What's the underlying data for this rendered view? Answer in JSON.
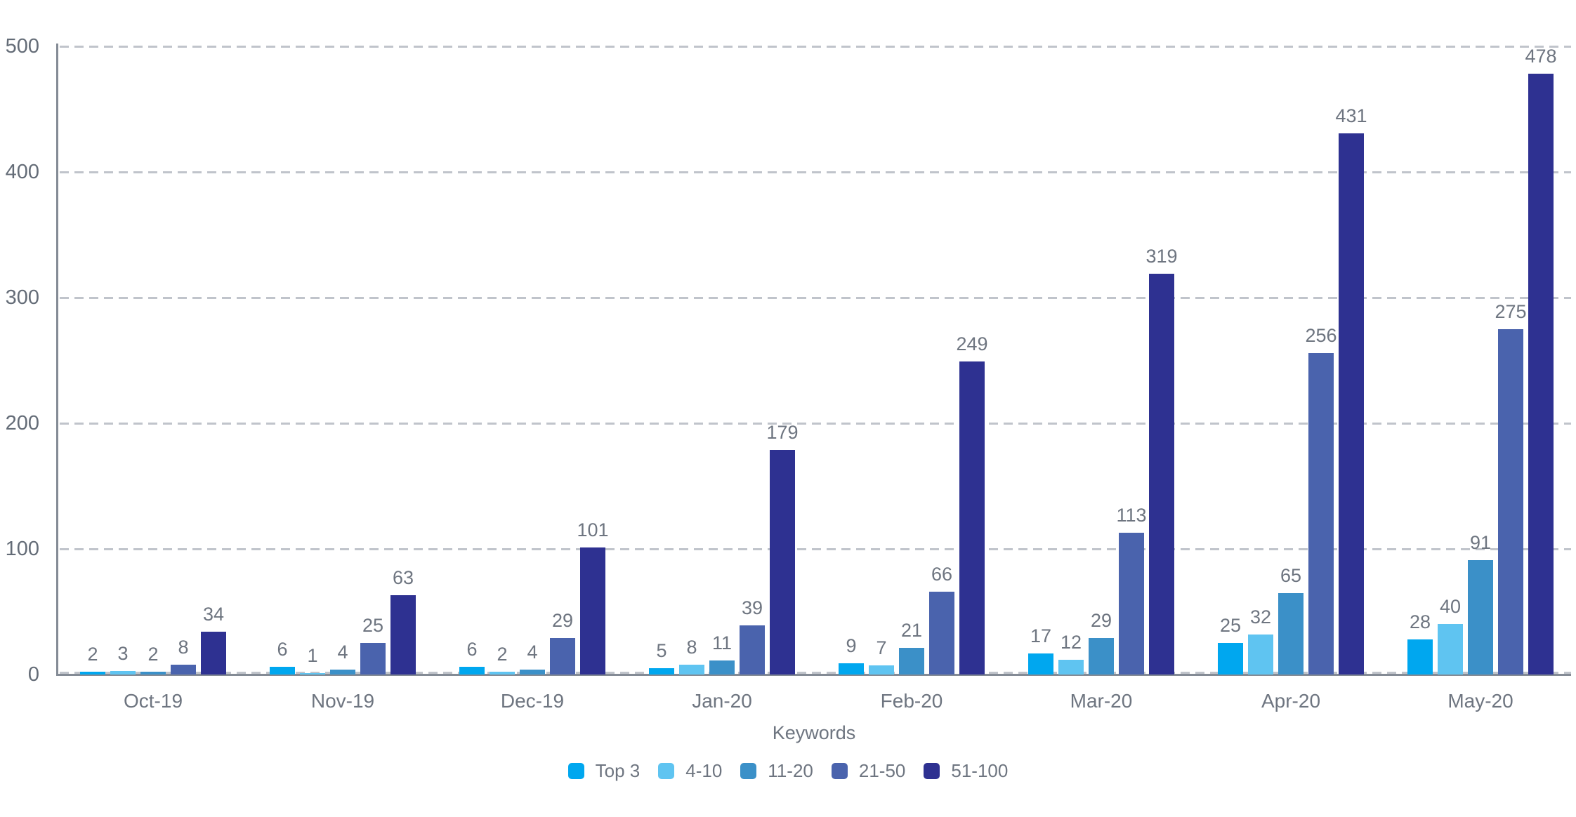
{
  "chart_data": {
    "type": "bar",
    "title": "",
    "xlabel": "Keywords",
    "ylabel": "",
    "ylim": [
      0,
      500
    ],
    "yticks": [
      0,
      100,
      200,
      300,
      400,
      500
    ],
    "grid": "horizontal-dashed",
    "legend_position": "bottom-center",
    "categories": [
      "Oct-19",
      "Nov-19",
      "Dec-19",
      "Jan-20",
      "Feb-20",
      "Mar-20",
      "Apr-20",
      "May-20"
    ],
    "series": [
      {
        "name": "Top 3",
        "color": "#00a7ef",
        "values": [
          2,
          6,
          6,
          5,
          9,
          17,
          25,
          28
        ]
      },
      {
        "name": "4-10",
        "color": "#5fc4f1",
        "values": [
          3,
          1,
          2,
          8,
          7,
          12,
          32,
          40
        ]
      },
      {
        "name": "11-20",
        "color": "#3b90c8",
        "values": [
          2,
          4,
          4,
          11,
          21,
          29,
          65,
          91
        ]
      },
      {
        "name": "21-50",
        "color": "#4a63ad",
        "values": [
          8,
          25,
          29,
          39,
          66,
          113,
          256,
          275
        ]
      },
      {
        "name": "51-100",
        "color": "#2e3191",
        "values": [
          34,
          63,
          101,
          179,
          249,
          319,
          431,
          478
        ]
      }
    ]
  },
  "axis_colors": {
    "gridline": "#c0c4cb",
    "axis_line": "#848b95",
    "tick_text": "#646c77",
    "label_text": "#6e7580"
  }
}
